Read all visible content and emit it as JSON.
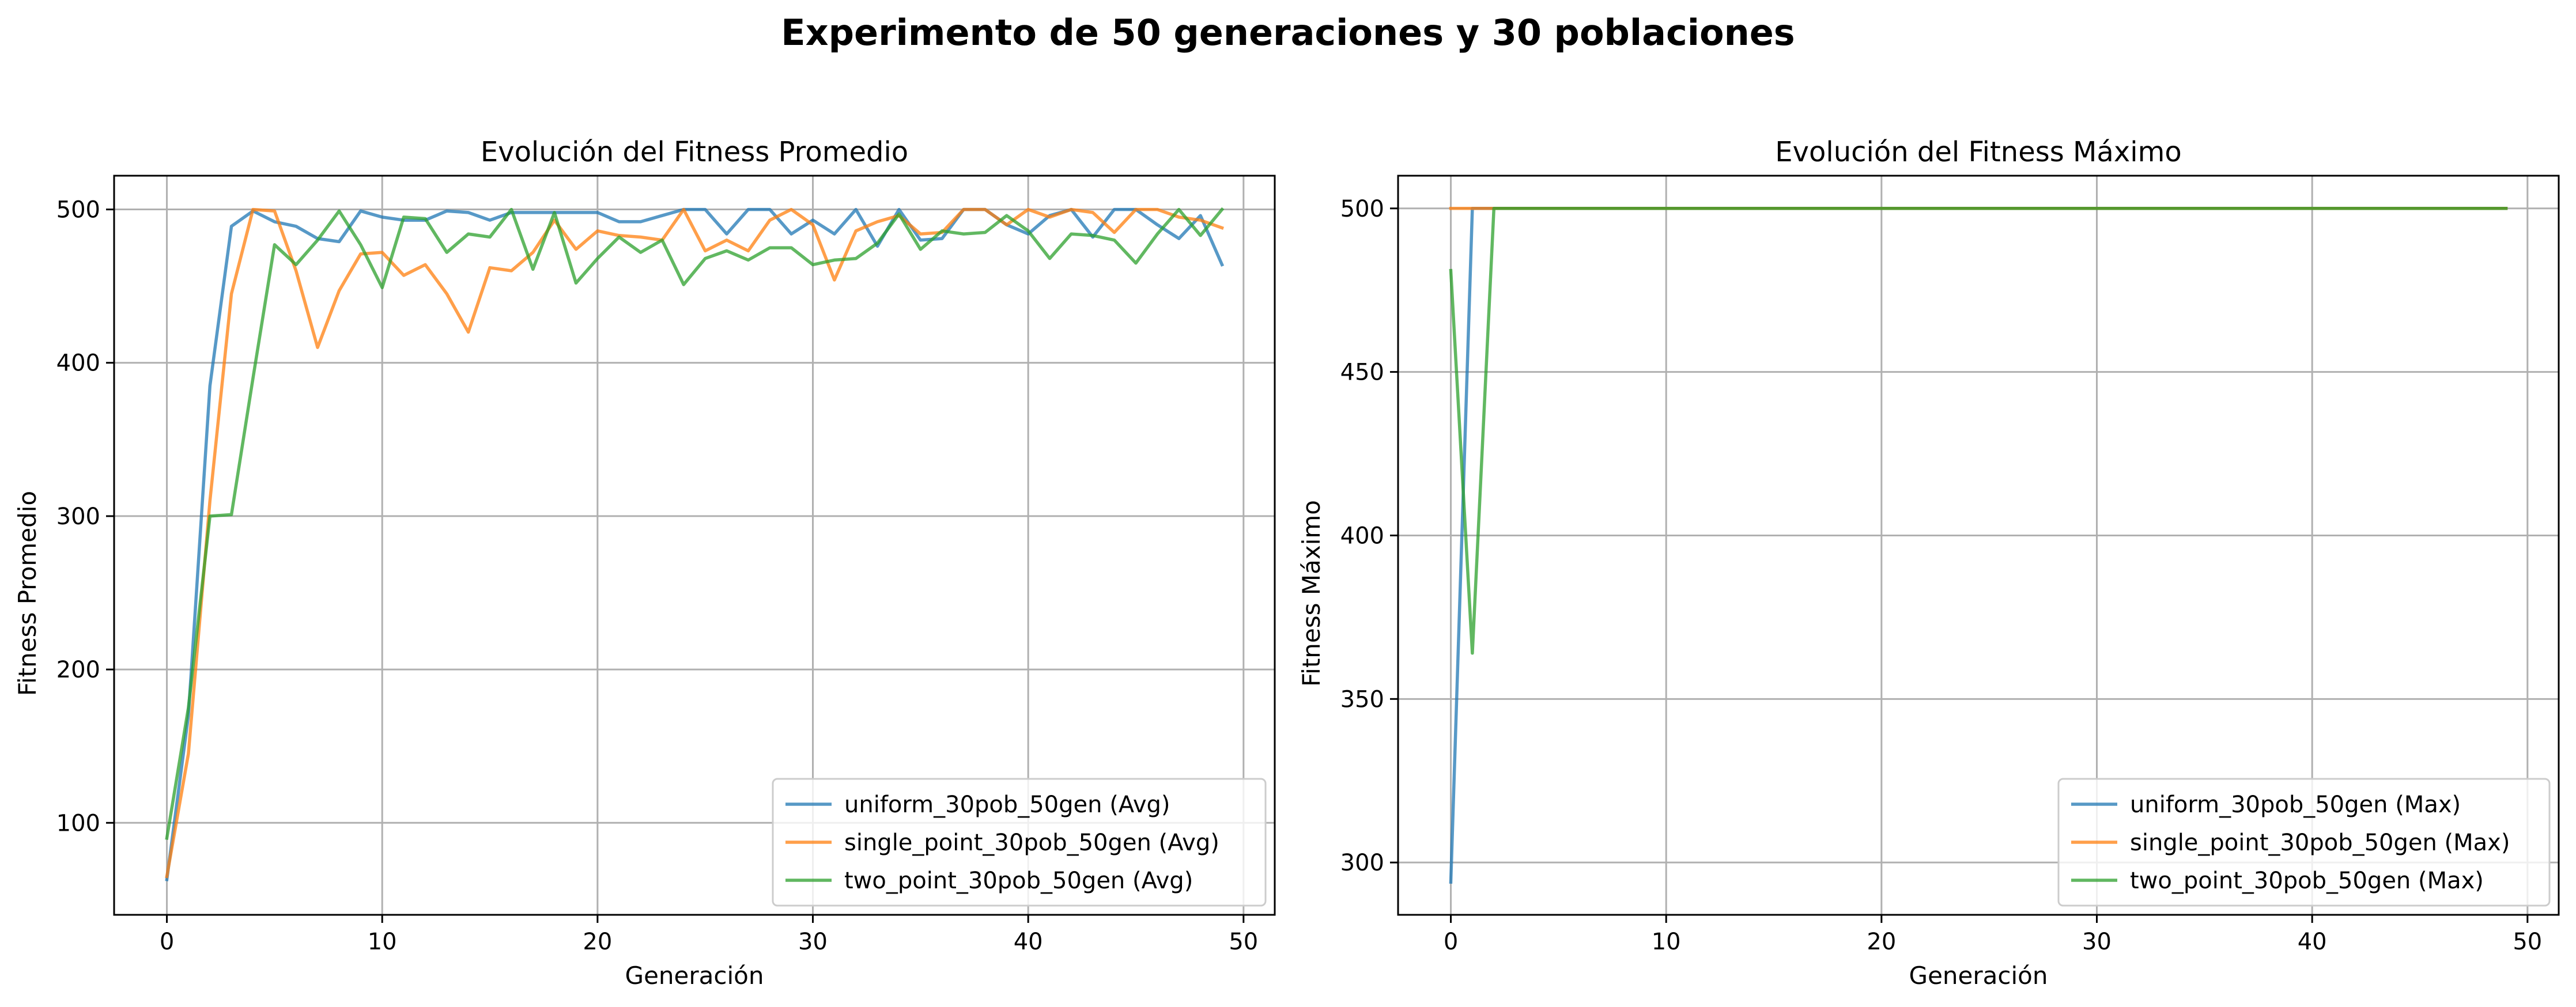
{
  "figure": {
    "suptitle": "Experimento de 50 generaciones y 30 poblaciones"
  },
  "chart_data": [
    {
      "type": "line",
      "title": "Evolución del Fitness Promedio",
      "xlabel": "Generación",
      "ylabel": "Fitness Promedio",
      "xlim": [
        -2.45,
        51.45
      ],
      "ylim": [
        40,
        522
      ],
      "xticks": [
        0,
        10,
        20,
        30,
        40,
        50
      ],
      "yticks": [
        100,
        200,
        300,
        400,
        500
      ],
      "grid": true,
      "legend_position": "lower-right",
      "x": [
        0,
        1,
        2,
        3,
        4,
        5,
        6,
        7,
        8,
        9,
        10,
        11,
        12,
        13,
        14,
        15,
        16,
        17,
        18,
        19,
        20,
        21,
        22,
        23,
        24,
        25,
        26,
        27,
        28,
        29,
        30,
        31,
        32,
        33,
        34,
        35,
        36,
        37,
        38,
        39,
        40,
        41,
        42,
        43,
        44,
        45,
        46,
        47,
        48,
        49
      ],
      "series": [
        {
          "name": "uniform_30pob_50gen (Avg)",
          "color": "#1f77b4",
          "values": [
            63,
            170,
            385,
            489,
            499,
            492,
            489,
            481,
            479,
            499,
            495,
            493,
            493,
            499,
            498,
            493,
            498,
            498,
            498,
            498,
            498,
            492,
            492,
            496,
            500,
            500,
            484,
            500,
            500,
            484,
            493,
            484,
            500,
            476,
            500,
            480,
            481,
            500,
            500,
            490,
            484,
            496,
            500,
            482,
            500,
            500,
            490,
            481,
            496,
            464
          ]
        },
        {
          "name": "single_point_30pob_50gen (Avg)",
          "color": "#ff7f0e",
          "values": [
            65,
            145,
            310,
            445,
            500,
            499,
            460,
            410,
            447,
            471,
            472,
            457,
            464,
            445,
            420,
            462,
            460,
            472,
            493,
            474,
            486,
            483,
            482,
            480,
            500,
            473,
            480,
            473,
            493,
            500,
            490,
            454,
            486,
            492,
            496,
            484,
            485,
            500,
            500,
            490,
            500,
            495,
            500,
            498,
            485,
            500,
            500,
            495,
            493,
            488
          ]
        },
        {
          "name": "two_point_30pob_50gen (Avg)",
          "color": "#2ca02c",
          "values": [
            90,
            175,
            300,
            301,
            390,
            477,
            464,
            480,
            499,
            477,
            449,
            495,
            494,
            472,
            484,
            482,
            500,
            461,
            498,
            452,
            468,
            482,
            472,
            480,
            451,
            468,
            473,
            467,
            475,
            475,
            464,
            467,
            468,
            478,
            497,
            474,
            486,
            484,
            485,
            496,
            486,
            468,
            484,
            483,
            480,
            465,
            484,
            500,
            483,
            500
          ]
        }
      ]
    },
    {
      "type": "line",
      "title": "Evolución del Fitness Máximo",
      "xlabel": "Generación",
      "ylabel": "Fitness Máximo",
      "xlim": [
        -2.45,
        51.45
      ],
      "ylim": [
        284,
        510
      ],
      "xticks": [
        0,
        10,
        20,
        30,
        40,
        50
      ],
      "yticks": [
        300,
        350,
        400,
        450,
        500
      ],
      "grid": true,
      "legend_position": "lower-right",
      "x": [
        0,
        1,
        2,
        3,
        4,
        5,
        6,
        7,
        8,
        9,
        10,
        11,
        12,
        13,
        14,
        15,
        16,
        17,
        18,
        19,
        20,
        21,
        22,
        23,
        24,
        25,
        26,
        27,
        28,
        29,
        30,
        31,
        32,
        33,
        34,
        35,
        36,
        37,
        38,
        39,
        40,
        41,
        42,
        43,
        44,
        45,
        46,
        47,
        48,
        49
      ],
      "series": [
        {
          "name": "uniform_30pob_50gen (Max)",
          "color": "#1f77b4",
          "values": [
            294,
            500,
            500,
            500,
            500,
            500,
            500,
            500,
            500,
            500,
            500,
            500,
            500,
            500,
            500,
            500,
            500,
            500,
            500,
            500,
            500,
            500,
            500,
            500,
            500,
            500,
            500,
            500,
            500,
            500,
            500,
            500,
            500,
            500,
            500,
            500,
            500,
            500,
            500,
            500,
            500,
            500,
            500,
            500,
            500,
            500,
            500,
            500,
            500,
            500
          ]
        },
        {
          "name": "single_point_30pob_50gen (Max)",
          "color": "#ff7f0e",
          "values": [
            500,
            500,
            500,
            500,
            500,
            500,
            500,
            500,
            500,
            500,
            500,
            500,
            500,
            500,
            500,
            500,
            500,
            500,
            500,
            500,
            500,
            500,
            500,
            500,
            500,
            500,
            500,
            500,
            500,
            500,
            500,
            500,
            500,
            500,
            500,
            500,
            500,
            500,
            500,
            500,
            500,
            500,
            500,
            500,
            500,
            500,
            500,
            500,
            500,
            500
          ]
        },
        {
          "name": "two_point_30pob_50gen (Max)",
          "color": "#2ca02c",
          "values": [
            481,
            364,
            500,
            500,
            500,
            500,
            500,
            500,
            500,
            500,
            500,
            500,
            500,
            500,
            500,
            500,
            500,
            500,
            500,
            500,
            500,
            500,
            500,
            500,
            500,
            500,
            500,
            500,
            500,
            500,
            500,
            500,
            500,
            500,
            500,
            500,
            500,
            500,
            500,
            500,
            500,
            500,
            500,
            500,
            500,
            500,
            500,
            500,
            500,
            500
          ]
        }
      ]
    }
  ]
}
